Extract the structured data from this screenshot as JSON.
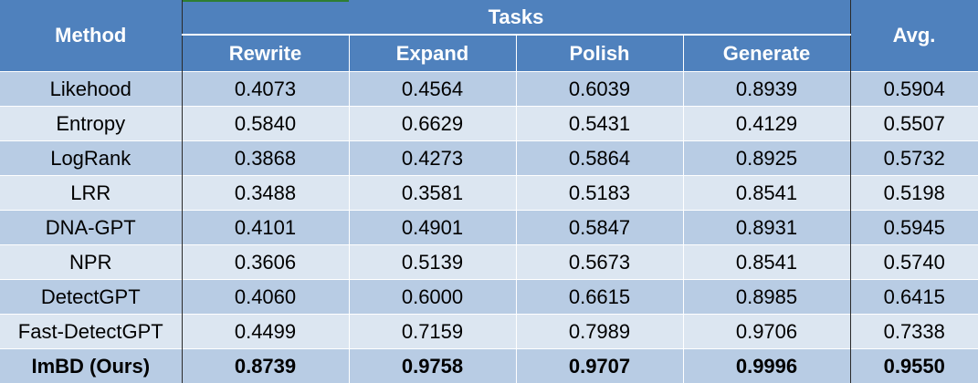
{
  "headers": {
    "method": "Method",
    "tasks": "Tasks",
    "avg": "Avg.",
    "subtasks": [
      "Rewrite",
      "Expand",
      "Polish",
      "Generate"
    ]
  },
  "rows": [
    {
      "method": "Likehood",
      "values": [
        "0.4073",
        "0.4564",
        "0.6039",
        "0.8939"
      ],
      "avg": "0.5904"
    },
    {
      "method": "Entropy",
      "values": [
        "0.5840",
        "0.6629",
        "0.5431",
        "0.4129"
      ],
      "avg": "0.5507"
    },
    {
      "method": "LogRank",
      "values": [
        "0.3868",
        "0.4273",
        "0.5864",
        "0.8925"
      ],
      "avg": "0.5732"
    },
    {
      "method": "LRR",
      "values": [
        "0.3488",
        "0.3581",
        "0.5183",
        "0.8541"
      ],
      "avg": "0.5198"
    },
    {
      "method": "DNA-GPT",
      "values": [
        "0.4101",
        "0.4901",
        "0.5847",
        "0.8931"
      ],
      "avg": "0.5945"
    },
    {
      "method": "NPR",
      "values": [
        "0.3606",
        "0.5139",
        "0.5673",
        "0.8541"
      ],
      "avg": "0.5740"
    },
    {
      "method": "DetectGPT",
      "values": [
        "0.4060",
        "0.6000",
        "0.6615",
        "0.8985"
      ],
      "avg": "0.6415"
    },
    {
      "method": "Fast-DetectGPT",
      "values": [
        "0.4499",
        "0.7159",
        "0.7989",
        "0.9706"
      ],
      "avg": "0.7338"
    },
    {
      "method": "ImBD (Ours)",
      "values": [
        "0.8739",
        "0.9758",
        "0.9707",
        "0.9996"
      ],
      "avg": "0.9550"
    }
  ],
  "colors": {
    "header": "#4f81bd",
    "row_dark": "#b8cce4",
    "row_light": "#dce6f1"
  }
}
